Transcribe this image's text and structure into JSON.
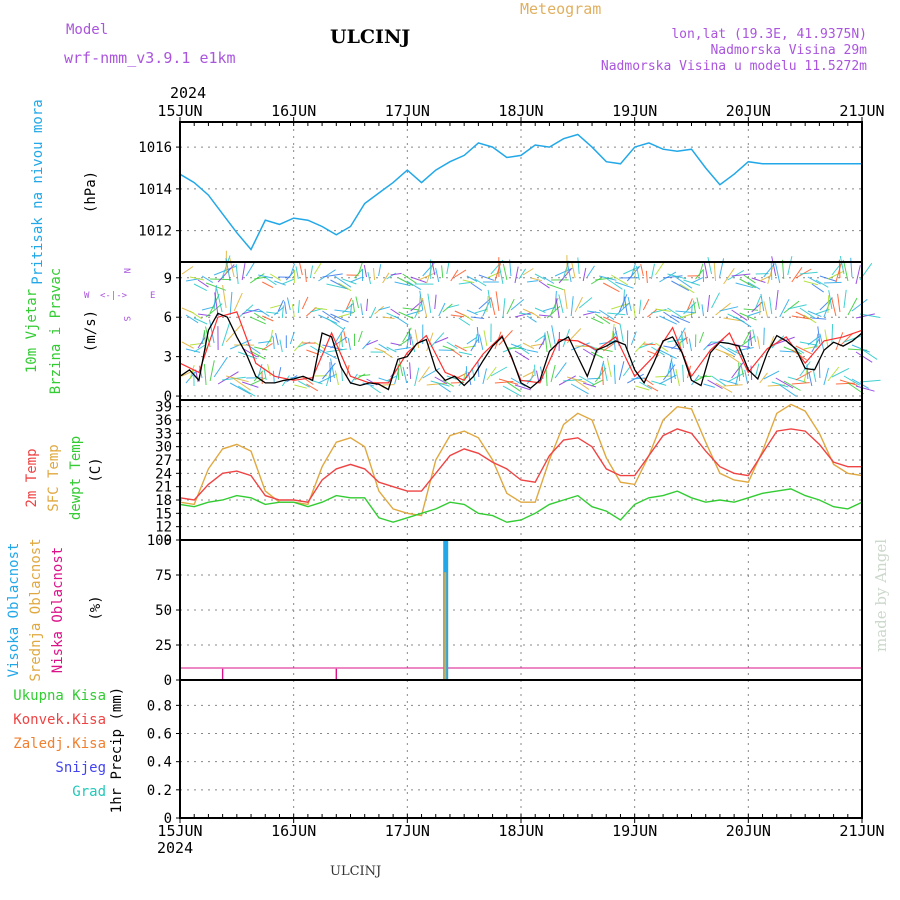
{
  "header": {
    "model_label": "Model",
    "model_name": "wrf-nmm_v3.9.1 e1km",
    "station": "ULCINJ",
    "title": "Meteogram",
    "lonlat": "lon,lat (19.3E, 41.9375N)",
    "elev": "Nadmorska Visina 29m",
    "elev_model": "Nadmorska Visina u modelu 11.5272m",
    "year": "2024",
    "footer_station": "ULCINJ",
    "watermark": "made by Angel"
  },
  "colors": {
    "pressure": "#22a8e8",
    "wind_speed": "#000000",
    "wind_gust": "#ff3030",
    "temp2m": "#ee4444",
    "sfc_temp": "#e0a840",
    "dewpt": "#33cc33",
    "cloud_high": "#22a8e8",
    "cloud_mid": "#e0a840",
    "cloud_low": "#dd1188",
    "precip_total": "#33cc33",
    "precip_conv": "#ee4444",
    "precip_frozen": "#f08030",
    "snow": "#4444ee",
    "hail": "#22c8b8",
    "wind_label": "#33cc33",
    "compass": "#aa55dd"
  },
  "chart_data": [
    {
      "type": "line",
      "panel": "pressure",
      "ylabel_name": "Pritisak na nivou mora",
      "ylabel_unit": "(hPa)",
      "ylim": [
        1010.5,
        1017.2
      ],
      "yticks": [
        1012,
        1014,
        1016
      ],
      "xlim": [
        0,
        144
      ],
      "x_axis_unit": "hours after 15JUN 00UTC",
      "xtick_labels": [
        "15JUN",
        "16JUN",
        "17JUN",
        "18JUN",
        "19JUN",
        "20JUN",
        "21JUN"
      ],
      "grid": true,
      "series": [
        {
          "name": "",
          "x": [
            0,
            3,
            6,
            9,
            12,
            15,
            18,
            21,
            24,
            27,
            30,
            33,
            36,
            39,
            42,
            45,
            48,
            51,
            54,
            57,
            60,
            63,
            66,
            69,
            72,
            75,
            78,
            81,
            84,
            87,
            90,
            93,
            96,
            99,
            102,
            105,
            108,
            111,
            114,
            117,
            120,
            123,
            126,
            129,
            132,
            135,
            138,
            141,
            144
          ],
          "values": [
            1014.7,
            1014.3,
            1013.7,
            1012.8,
            1011.9,
            1011.1,
            1012.5,
            1012.3,
            1012.6,
            1012.5,
            1012.2,
            1011.8,
            1012.2,
            1013.3,
            1013.8,
            1014.3,
            1014.9,
            1014.3,
            1014.9,
            1015.3,
            1015.6,
            1016.2,
            1016.0,
            1015.5,
            1015.6,
            1016.1,
            1016.0,
            1016.4,
            1016.6,
            1016.0,
            1015.3,
            1015.2,
            1016.0,
            1016.2,
            1015.9,
            1015.8,
            1015.9,
            1015.0,
            1014.2,
            1014.7,
            1015.3,
            1015.2,
            1015.2,
            1015.2,
            1015.2,
            1015.2,
            1015.2,
            1015.2,
            1015.2
          ]
        }
      ]
    },
    {
      "type": "line",
      "panel": "wind",
      "ylabel_name": "10m Vjetar Brzina i Pravac",
      "ylabel_unit": "(m/s)",
      "compass": {
        "w": "W",
        "e": "E",
        "n": "N",
        "s": "S",
        "left_right": "<-|->"
      },
      "ylim": [
        -0.3,
        10.2
      ],
      "yticks": [
        0,
        3,
        6,
        9
      ],
      "xlim": [
        0,
        144
      ],
      "grid": true,
      "series": [
        {
          "name": "",
          "x": [
            0,
            2,
            4,
            6,
            8,
            10,
            12,
            14,
            16,
            18,
            20,
            22,
            24,
            26,
            28,
            30,
            32,
            34,
            36,
            38,
            40,
            42,
            44,
            46,
            48,
            50,
            52,
            54,
            56,
            58,
            60,
            62,
            64,
            66,
            68,
            70,
            72,
            74,
            76,
            78,
            80,
            82,
            84,
            86,
            88,
            90,
            92,
            94,
            96,
            98,
            100,
            102,
            104,
            106,
            108,
            110,
            112,
            114,
            116,
            118,
            120,
            122,
            124,
            126,
            128,
            130,
            132,
            134,
            136,
            138,
            140,
            142,
            144
          ],
          "values": [
            1.5,
            2.0,
            1.2,
            5.0,
            6.3,
            6.0,
            4.5,
            3.2,
            1.5,
            1.0,
            1.0,
            1.2,
            1.3,
            1.5,
            1.2,
            4.8,
            4.5,
            2.2,
            1.0,
            0.8,
            1.0,
            0.9,
            0.5,
            2.8,
            3.0,
            4.0,
            4.3,
            2.0,
            1.2,
            1.5,
            0.8,
            1.5,
            2.7,
            3.8,
            4.5,
            3.0,
            1.0,
            0.6,
            1.2,
            3.4,
            4.1,
            4.5,
            3.0,
            1.5,
            3.5,
            3.8,
            4.2,
            3.9,
            2.0,
            1.0,
            2.5,
            4.2,
            4.5,
            3.3,
            1.2,
            0.8,
            3.3,
            4.1,
            4.0,
            3.8,
            2.0,
            1.3,
            3.3,
            4.6,
            4.2,
            3.6,
            2.1,
            2.0,
            3.5,
            4.1,
            3.8,
            4.2,
            4.8
          ]
        },
        {
          "name": "",
          "x": [
            0,
            4,
            8,
            12,
            16,
            20,
            24,
            28,
            32,
            36,
            40,
            44,
            48,
            52,
            56,
            60,
            64,
            68,
            72,
            76,
            80,
            84,
            88,
            92,
            96,
            100,
            104,
            108,
            112,
            116,
            120,
            124,
            128,
            132,
            136,
            140,
            144
          ],
          "values": [
            2.5,
            1.8,
            6.0,
            6.4,
            2.5,
            1.5,
            1.2,
            1.4,
            4.8,
            1.5,
            1.0,
            1.0,
            3.3,
            4.6,
            1.8,
            1.2,
            3.2,
            4.6,
            1.2,
            1.0,
            4.3,
            4.2,
            3.5,
            4.5,
            1.5,
            3.0,
            5.2,
            1.5,
            3.5,
            4.8,
            1.8,
            3.6,
            4.5,
            2.5,
            4.2,
            4.5,
            5.0
          ]
        }
      ]
    },
    {
      "type": "line",
      "panel": "temperature",
      "ylabel_names": [
        "2m Temp",
        "SFC Temp",
        "dewpt Temp"
      ],
      "ylabel_unit": "(C)",
      "ylim": [
        9,
        40.5
      ],
      "yticks": [
        9,
        12,
        15,
        18,
        21,
        24,
        27,
        30,
        33,
        36,
        39
      ],
      "xlim": [
        0,
        144
      ],
      "grid": true,
      "series": [
        {
          "name": "2m Temp",
          "x": [
            0,
            3,
            6,
            9,
            12,
            15,
            18,
            21,
            24,
            27,
            30,
            33,
            36,
            39,
            42,
            45,
            48,
            51,
            54,
            57,
            60,
            63,
            66,
            69,
            72,
            75,
            78,
            81,
            84,
            87,
            90,
            93,
            96,
            99,
            102,
            105,
            108,
            111,
            114,
            117,
            120,
            123,
            126,
            129,
            132,
            135,
            138,
            141,
            144
          ],
          "values": [
            18.5,
            18.0,
            21.5,
            24.0,
            24.5,
            23.5,
            19.0,
            18.0,
            18.0,
            17.5,
            22.5,
            25.0,
            26.0,
            25.0,
            22.0,
            21.0,
            20.0,
            20.0,
            24.0,
            28.0,
            29.5,
            28.5,
            26.5,
            25.0,
            22.5,
            22.0,
            28.0,
            31.5,
            32.0,
            30.0,
            25.0,
            23.5,
            23.5,
            28.0,
            32.5,
            34.0,
            33.0,
            29.0,
            25.5,
            24.0,
            23.5,
            28.5,
            33.5,
            34.0,
            33.5,
            30.5,
            26.5,
            25.5,
            25.5
          ]
        },
        {
          "name": "SFC Temp",
          "x": [
            0,
            3,
            6,
            9,
            12,
            15,
            18,
            21,
            24,
            27,
            30,
            33,
            36,
            39,
            42,
            45,
            48,
            51,
            54,
            57,
            60,
            63,
            66,
            69,
            72,
            75,
            78,
            81,
            84,
            87,
            90,
            93,
            96,
            99,
            102,
            105,
            108,
            111,
            114,
            117,
            120,
            123,
            126,
            129,
            132,
            135,
            138,
            141,
            144
          ],
          "values": [
            17.5,
            17.0,
            25.0,
            29.5,
            30.5,
            29.0,
            20.0,
            17.5,
            17.5,
            17.0,
            25.5,
            31.0,
            32.0,
            30.0,
            20.0,
            16.0,
            15.0,
            14.5,
            27.0,
            32.5,
            33.5,
            32.0,
            27.0,
            19.5,
            17.5,
            17.5,
            27.0,
            35.0,
            37.5,
            36.0,
            27.5,
            22.0,
            21.5,
            28.0,
            36.0,
            39.0,
            38.5,
            31.0,
            24.0,
            22.5,
            22.0,
            29.0,
            37.5,
            39.5,
            38.0,
            33.0,
            26.0,
            24.0,
            23.5
          ]
        },
        {
          "name": "dewpt Temp",
          "x": [
            0,
            3,
            6,
            9,
            12,
            15,
            18,
            21,
            24,
            27,
            30,
            33,
            36,
            39,
            42,
            45,
            48,
            51,
            54,
            57,
            60,
            63,
            66,
            69,
            72,
            75,
            78,
            81,
            84,
            87,
            90,
            93,
            96,
            99,
            102,
            105,
            108,
            111,
            114,
            117,
            120,
            123,
            126,
            129,
            132,
            135,
            138,
            141,
            144
          ],
          "values": [
            17.0,
            16.5,
            17.5,
            18.0,
            19.0,
            18.5,
            17.0,
            17.5,
            17.5,
            16.5,
            17.5,
            19.0,
            18.5,
            18.5,
            14.0,
            13.0,
            14.0,
            15.0,
            16.0,
            17.5,
            17.0,
            15.0,
            14.5,
            13.0,
            13.5,
            15.0,
            17.0,
            18.0,
            19.0,
            16.5,
            15.5,
            13.5,
            17.0,
            18.5,
            19.0,
            20.0,
            18.5,
            17.5,
            18.0,
            17.5,
            18.5,
            19.5,
            20.0,
            20.5,
            19.0,
            18.0,
            16.5,
            16.0,
            17.5
          ]
        }
      ]
    },
    {
      "type": "bar",
      "panel": "cloud",
      "ylabel_names": [
        "Visoka Oblacnost",
        "Srednja Oblacnost",
        "Niska Oblacnost"
      ],
      "ylabel_unit": "(%)",
      "ylim": [
        0,
        100
      ],
      "yticks": [
        0,
        25,
        50,
        75,
        100
      ],
      "xlim": [
        0,
        144
      ],
      "grid": true,
      "series": [
        {
          "name": "Visoka Oblacnost",
          "x": [
            56
          ],
          "values": [
            100
          ]
        },
        {
          "name": "Srednja Oblacnost",
          "x": [
            56
          ],
          "values": [
            77
          ]
        },
        {
          "name": "Niska Oblacnost",
          "x": [
            9,
            33
          ],
          "values": [
            8,
            8
          ]
        }
      ]
    },
    {
      "type": "bar",
      "panel": "precip",
      "ylabel_unit": "1hr Precip (mm)",
      "legend": [
        "Ukupna Kisa",
        "Konvek.Kisa",
        "Zaledj.Kisa",
        "Snijeg",
        "Grad"
      ],
      "ylim": [
        0,
        0.98
      ],
      "yticks": [
        0,
        0.2,
        0.4,
        0.6,
        0.8
      ],
      "xlim": [
        0,
        144
      ],
      "xtick_labels": [
        "15JUN",
        "16JUN",
        "17JUN",
        "18JUN",
        "19JUN",
        "20JUN",
        "21JUN"
      ],
      "grid": true,
      "series": []
    }
  ]
}
